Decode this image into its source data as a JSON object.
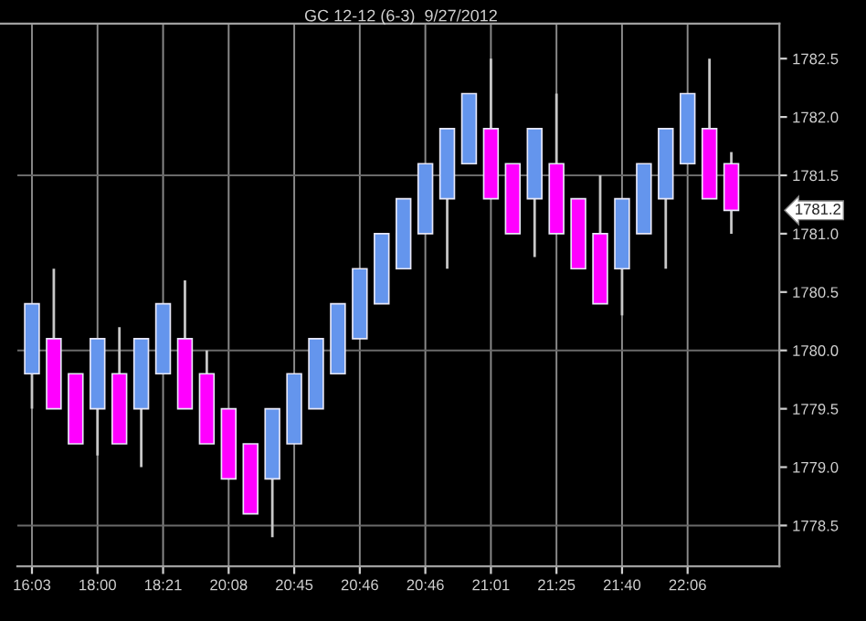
{
  "chart_data": {
    "type": "candlestick",
    "title": "GC 12-12 (6-3)  9/27/2012",
    "categories": [
      "16:03",
      null,
      null,
      "18:00",
      null,
      null,
      "18:21",
      null,
      null,
      "20:08",
      null,
      null,
      "20:45",
      null,
      null,
      "20:46",
      null,
      null,
      "20:46",
      null,
      null,
      "21:01",
      null,
      null,
      "21:25",
      null,
      null,
      "21:40",
      null,
      null,
      "22:06",
      null,
      null
    ],
    "ohlc": [
      [
        1779.8,
        1780.4,
        1779.5,
        1780.4
      ],
      [
        1780.1,
        1780.7,
        1779.5,
        1779.5
      ],
      [
        1779.8,
        1779.8,
        1779.2,
        1779.2
      ],
      [
        1779.5,
        1780.1,
        1779.1,
        1780.1
      ],
      [
        1779.8,
        1780.2,
        1779.2,
        1779.2
      ],
      [
        1779.5,
        1780.1,
        1779.0,
        1780.1
      ],
      [
        1779.8,
        1780.4,
        1779.8,
        1780.4
      ],
      [
        1780.1,
        1780.6,
        1779.5,
        1779.5
      ],
      [
        1779.8,
        1780.0,
        1779.2,
        1779.2
      ],
      [
        1779.5,
        1779.5,
        1778.9,
        1778.9
      ],
      [
        1779.2,
        1779.2,
        1778.6,
        1778.6
      ],
      [
        1778.9,
        1779.5,
        1778.4,
        1779.5
      ],
      [
        1779.2,
        1779.8,
        1779.2,
        1779.8
      ],
      [
        1779.5,
        1780.1,
        1779.5,
        1780.1
      ],
      [
        1779.8,
        1780.4,
        1779.8,
        1780.4
      ],
      [
        1780.1,
        1780.7,
        1780.1,
        1780.7
      ],
      [
        1780.4,
        1781.0,
        1780.4,
        1781.0
      ],
      [
        1780.7,
        1781.3,
        1780.7,
        1781.3
      ],
      [
        1781.0,
        1781.6,
        1781.0,
        1781.6
      ],
      [
        1781.3,
        1781.9,
        1780.7,
        1781.9
      ],
      [
        1781.6,
        1782.2,
        1781.6,
        1782.2
      ],
      [
        1781.9,
        1782.5,
        1781.3,
        1781.3
      ],
      [
        1781.6,
        1781.6,
        1781.0,
        1781.0
      ],
      [
        1781.3,
        1781.9,
        1780.8,
        1781.9
      ],
      [
        1781.6,
        1782.2,
        1781.0,
        1781.0
      ],
      [
        1781.3,
        1781.3,
        1780.7,
        1780.7
      ],
      [
        1781.0,
        1781.5,
        1780.4,
        1780.4
      ],
      [
        1780.7,
        1781.3,
        1780.3,
        1781.3
      ],
      [
        1781.0,
        1781.6,
        1781.0,
        1781.6
      ],
      [
        1781.3,
        1781.9,
        1780.7,
        1781.9
      ],
      [
        1781.6,
        1782.2,
        1781.6,
        1782.2
      ],
      [
        1781.9,
        1782.5,
        1781.3,
        1781.3
      ],
      [
        1781.6,
        1781.7,
        1781.0,
        1781.2
      ]
    ],
    "colors": [
      "#6495ed",
      "#ff00ff",
      "#ff00ff",
      "#6495ed",
      "#ff00ff",
      "#6495ed",
      "#6495ed",
      "#ff00ff",
      "#ff00ff",
      "#ff00ff",
      "#ff00ff",
      "#6495ed",
      "#6495ed",
      "#6495ed",
      "#6495ed",
      "#6495ed",
      "#6495ed",
      "#6495ed",
      "#6495ed",
      "#6495ed",
      "#6495ed",
      "#ff00ff",
      "#ff00ff",
      "#6495ed",
      "#ff00ff",
      "#ff00ff",
      "#ff00ff",
      "#6495ed",
      "#6495ed",
      "#6495ed",
      "#6495ed",
      "#ff00ff",
      "#ff00ff"
    ],
    "ylim": [
      1778.15,
      1782.8
    ],
    "yticks": [
      {
        "value": 1778.5,
        "label": "1778.5"
      },
      {
        "value": 1779,
        "label": "1779.0"
      },
      {
        "value": 1779.5,
        "label": "1779.5"
      },
      {
        "value": 1780,
        "label": "1780.0"
      },
      {
        "value": 1780.5,
        "label": "1780.5"
      },
      {
        "value": 1781,
        "label": "1781.0"
      },
      {
        "value": 1781.5,
        "label": "1781.5"
      },
      {
        "value": 1782,
        "label": "1782.0"
      },
      {
        "value": 1782.5,
        "label": "1782.5"
      }
    ],
    "annotations": [
      "1781.2"
    ],
    "grid": true
  }
}
